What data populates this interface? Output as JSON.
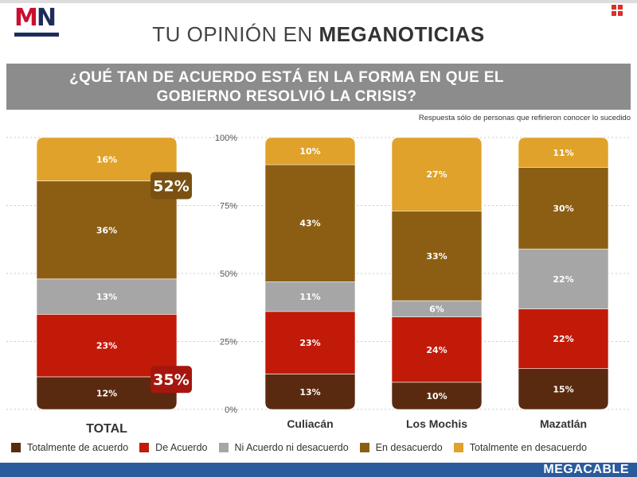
{
  "header": {
    "title_prefix": "TU OPINIÓN EN",
    "title_brand": "MEGANOTICIAS"
  },
  "logo": {
    "text_m": "M",
    "text_n": "N"
  },
  "question": "¿QUÉ TAN DE ACUERDO ESTÁ EN LA FORMA EN QUE EL GOBIERNO RESOLVIÓ LA CRISIS?",
  "note": "Respuesta sólo de personas que refirieron conocer lo sucedido",
  "footer": {
    "brand": "MEGACABLE"
  },
  "colors": {
    "totalmente_acuerdo": "#5a2a10",
    "de_acuerdo": "#c21a09",
    "ni_acuerdo": "#a6a6a6",
    "en_desacuerdo": "#8c5e14",
    "totalmente_desacuerdo": "#e0a22a",
    "badge_red": "#a5170e",
    "badge_brown": "#7a5112"
  },
  "chart_data": {
    "type": "bar",
    "stacked": true,
    "percent_scale": true,
    "ylim": [
      0,
      100
    ],
    "yticks": [
      "0%",
      "25%",
      "50%",
      "75%",
      "100%"
    ],
    "categories": [
      "TOTAL",
      "Culiacán",
      "Los Mochis",
      "Mazatlán"
    ],
    "series": [
      {
        "name": "Totalmente de acuerdo",
        "color_key": "totalmente_acuerdo",
        "values": [
          12,
          13,
          10,
          15
        ],
        "labels": [
          "12%",
          "13%",
          "10%",
          "15%"
        ]
      },
      {
        "name": "De Acuerdo",
        "color_key": "de_acuerdo",
        "values": [
          23,
          23,
          24,
          22
        ],
        "labels": [
          "23%",
          "23%",
          "24%",
          "22%"
        ]
      },
      {
        "name": "Ni Acuerdo ni desacuerdo",
        "color_key": "ni_acuerdo",
        "values": [
          13,
          11,
          6,
          22
        ],
        "labels": [
          "13%",
          "11%",
          "6%",
          "22%"
        ]
      },
      {
        "name": "En desacuerdo",
        "color_key": "en_desacuerdo",
        "values": [
          36,
          43,
          33,
          30
        ],
        "labels": [
          "36%",
          "43%",
          "33%",
          "30%"
        ]
      },
      {
        "name": "Totalmente en desacuerdo",
        "color_key": "totalmente_desacuerdo",
        "values": [
          16,
          10,
          27,
          11
        ],
        "labels": [
          "16%",
          "10%",
          "27%",
          "11%"
        ]
      }
    ],
    "annotations": [
      {
        "category": "TOTAL",
        "text": "52%",
        "group": "desacuerdo",
        "color_key": "badge_brown"
      },
      {
        "category": "TOTAL",
        "text": "35%",
        "group": "acuerdo",
        "color_key": "badge_red"
      }
    ],
    "legend": "bottom"
  }
}
